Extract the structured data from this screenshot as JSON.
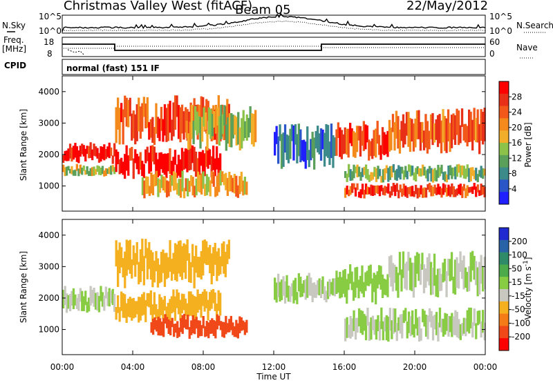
{
  "header": {
    "station": "Christmas Valley West (fitACF)",
    "beam": "Beam 05",
    "date": "22/May/2012"
  },
  "top_panels": {
    "nsky_label": "N.Sky",
    "nsearch_label": "N.Search",
    "freq_label_1": "Freq.",
    "freq_label_2": "[MHz]",
    "nave_label": "Nave",
    "cpid_label": "CPID",
    "cpid_value": "normal (fast) 151 IF",
    "noise_ticks": [
      "10^5",
      "10^0"
    ],
    "freq_ticks_left": [
      "18",
      "8"
    ],
    "nave_ticks_right": [
      "60",
      "0"
    ]
  },
  "colorbars": {
    "power": {
      "label": "Power [dB]",
      "ticks": [
        "28",
        "24",
        "20",
        "16",
        "12",
        "8",
        "4"
      ],
      "colors": [
        "#1f1fff",
        "#2a56c8",
        "#3d8a8a",
        "#5aa05a",
        "#8cc24a",
        "#f2ad2a",
        "#f58a1c",
        "#f2581a",
        "#e83018",
        "#ff0000"
      ]
    },
    "velocity": {
      "label": "Velocity [m s",
      "label_sup": "-1",
      "label_end": "]",
      "ticks": [
        "200",
        "100",
        "50",
        "15",
        "-15",
        "-50",
        "-100",
        "-200"
      ],
      "colors": [
        "#1f2ad0",
        "#2a62a8",
        "#2f8a6a",
        "#4caa4a",
        "#88cc44",
        "#c8c8c0",
        "#f5b020",
        "#f57a18",
        "#f04818",
        "#ff0000"
      ]
    }
  },
  "chart_data": [
    {
      "type": "heatmap",
      "ylabel": "Slant Range [km]",
      "ylim": [
        200,
        4500
      ],
      "yticks": [
        "4000",
        "3000",
        "2000",
        "1000"
      ],
      "xlim": [
        "00:00",
        "24:00"
      ],
      "colorbar": "Power [dB]",
      "crange": [
        0,
        30
      ],
      "bands": [
        {
          "t0": 0.0,
          "t1": 3.0,
          "r0": 1700,
          "r1": 2400,
          "value": 27
        },
        {
          "t0": 0.0,
          "t1": 3.0,
          "r0": 1300,
          "r1": 1700,
          "value": 14
        },
        {
          "t0": 3.0,
          "t1": 9.0,
          "r0": 1200,
          "r1": 2300,
          "value": 28
        },
        {
          "t0": 3.0,
          "t1": 9.5,
          "r0": 2300,
          "r1": 3900,
          "value": 24
        },
        {
          "t0": 4.5,
          "t1": 10.5,
          "r0": 600,
          "r1": 1500,
          "value": 18
        },
        {
          "t0": 7.0,
          "t1": 11.0,
          "r0": 2100,
          "r1": 3600,
          "value": 14
        },
        {
          "t0": 12.0,
          "t1": 15.5,
          "r0": 1500,
          "r1": 3000,
          "value": 7
        },
        {
          "t0": 15.5,
          "t1": 18.5,
          "r0": 1800,
          "r1": 3100,
          "value": 24
        },
        {
          "t0": 16.0,
          "t1": 24.0,
          "r0": 600,
          "r1": 1100,
          "value": 25
        },
        {
          "t0": 16.0,
          "t1": 24.0,
          "r0": 1100,
          "r1": 1700,
          "value": 12
        },
        {
          "t0": 18.5,
          "t1": 24.0,
          "r0": 2000,
          "r1": 3500,
          "value": 22
        }
      ]
    },
    {
      "type": "heatmap",
      "ylabel": "Slant Range [km]",
      "ylim": [
        200,
        4500
      ],
      "yticks": [
        "4000",
        "3000",
        "2000",
        "1000"
      ],
      "xticks": [
        "00:00",
        "04:00",
        "08:00",
        "12:00",
        "16:00",
        "20:00",
        "00:00"
      ],
      "xlabel": "Time UT",
      "colorbar": "Velocity [m s-1]",
      "crange": [
        -200,
        200
      ],
      "bands": [
        {
          "t0": 0.0,
          "t1": 3.0,
          "r0": 1500,
          "r1": 2400,
          "value": 0
        },
        {
          "t0": 3.0,
          "t1": 9.0,
          "r0": 1200,
          "r1": 2300,
          "value": -50
        },
        {
          "t0": 3.0,
          "t1": 9.5,
          "r0": 2300,
          "r1": 3900,
          "value": -60
        },
        {
          "t0": 5.0,
          "t1": 10.5,
          "r0": 700,
          "r1": 1500,
          "value": -150
        },
        {
          "t0": 12.0,
          "t1": 15.5,
          "r0": 1800,
          "r1": 2800,
          "value": 0
        },
        {
          "t0": 15.5,
          "t1": 18.5,
          "r0": 1800,
          "r1": 3100,
          "value": 5
        },
        {
          "t0": 16.0,
          "t1": 24.0,
          "r0": 600,
          "r1": 1700,
          "value": 0
        },
        {
          "t0": 18.5,
          "t1": 24.0,
          "r0": 2000,
          "r1": 3500,
          "value": 0
        }
      ]
    }
  ]
}
